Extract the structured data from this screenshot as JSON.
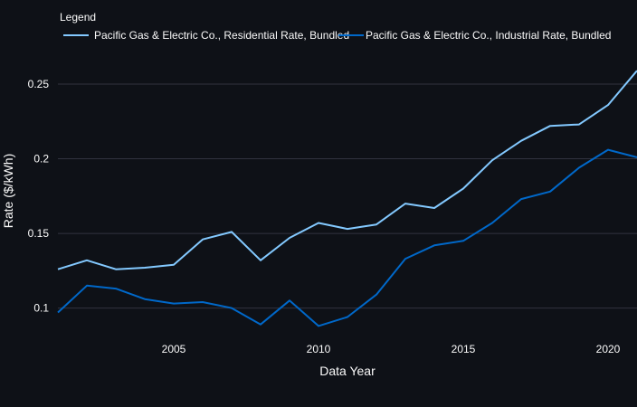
{
  "chart_data": {
    "type": "line",
    "xlabel": "Data Year",
    "ylabel": "Rate ($/kWh)",
    "legend_title": "Legend",
    "legend_position": "top-left",
    "grid": true,
    "x": [
      2001,
      2002,
      2003,
      2004,
      2005,
      2006,
      2007,
      2008,
      2009,
      2010,
      2011,
      2012,
      2013,
      2014,
      2015,
      2016,
      2017,
      2018,
      2019,
      2020,
      2021
    ],
    "xlim": [
      2001,
      2021
    ],
    "ylim": [
      0.084,
      0.27
    ],
    "xticks": [
      2005,
      2010,
      2015,
      2020
    ],
    "xtick_labels": [
      "2005",
      "2010",
      "2015",
      "2020"
    ],
    "yticks": [
      0.1,
      0.15,
      0.2,
      0.25
    ],
    "ytick_labels": [
      "0.1",
      "0.15",
      "0.2",
      "0.25"
    ],
    "series": [
      {
        "name": "Pacific Gas & Electric Co., Residential Rate, Bundled",
        "color": "#83c9ff",
        "values": [
          0.126,
          0.132,
          0.126,
          0.127,
          0.129,
          0.146,
          0.151,
          0.132,
          0.147,
          0.157,
          0.153,
          0.156,
          0.17,
          0.167,
          0.18,
          0.199,
          0.212,
          0.222,
          0.223,
          0.236,
          0.259
        ]
      },
      {
        "name": "Pacific Gas & Electric Co., Industrial Rate, Bundled",
        "color": "#0068c9",
        "values": [
          0.097,
          0.115,
          0.113,
          0.106,
          0.103,
          0.104,
          0.1,
          0.089,
          0.105,
          0.088,
          0.094,
          0.109,
          0.133,
          0.142,
          0.145,
          0.157,
          0.173,
          0.178,
          0.194,
          0.206,
          0.201
        ]
      }
    ]
  }
}
